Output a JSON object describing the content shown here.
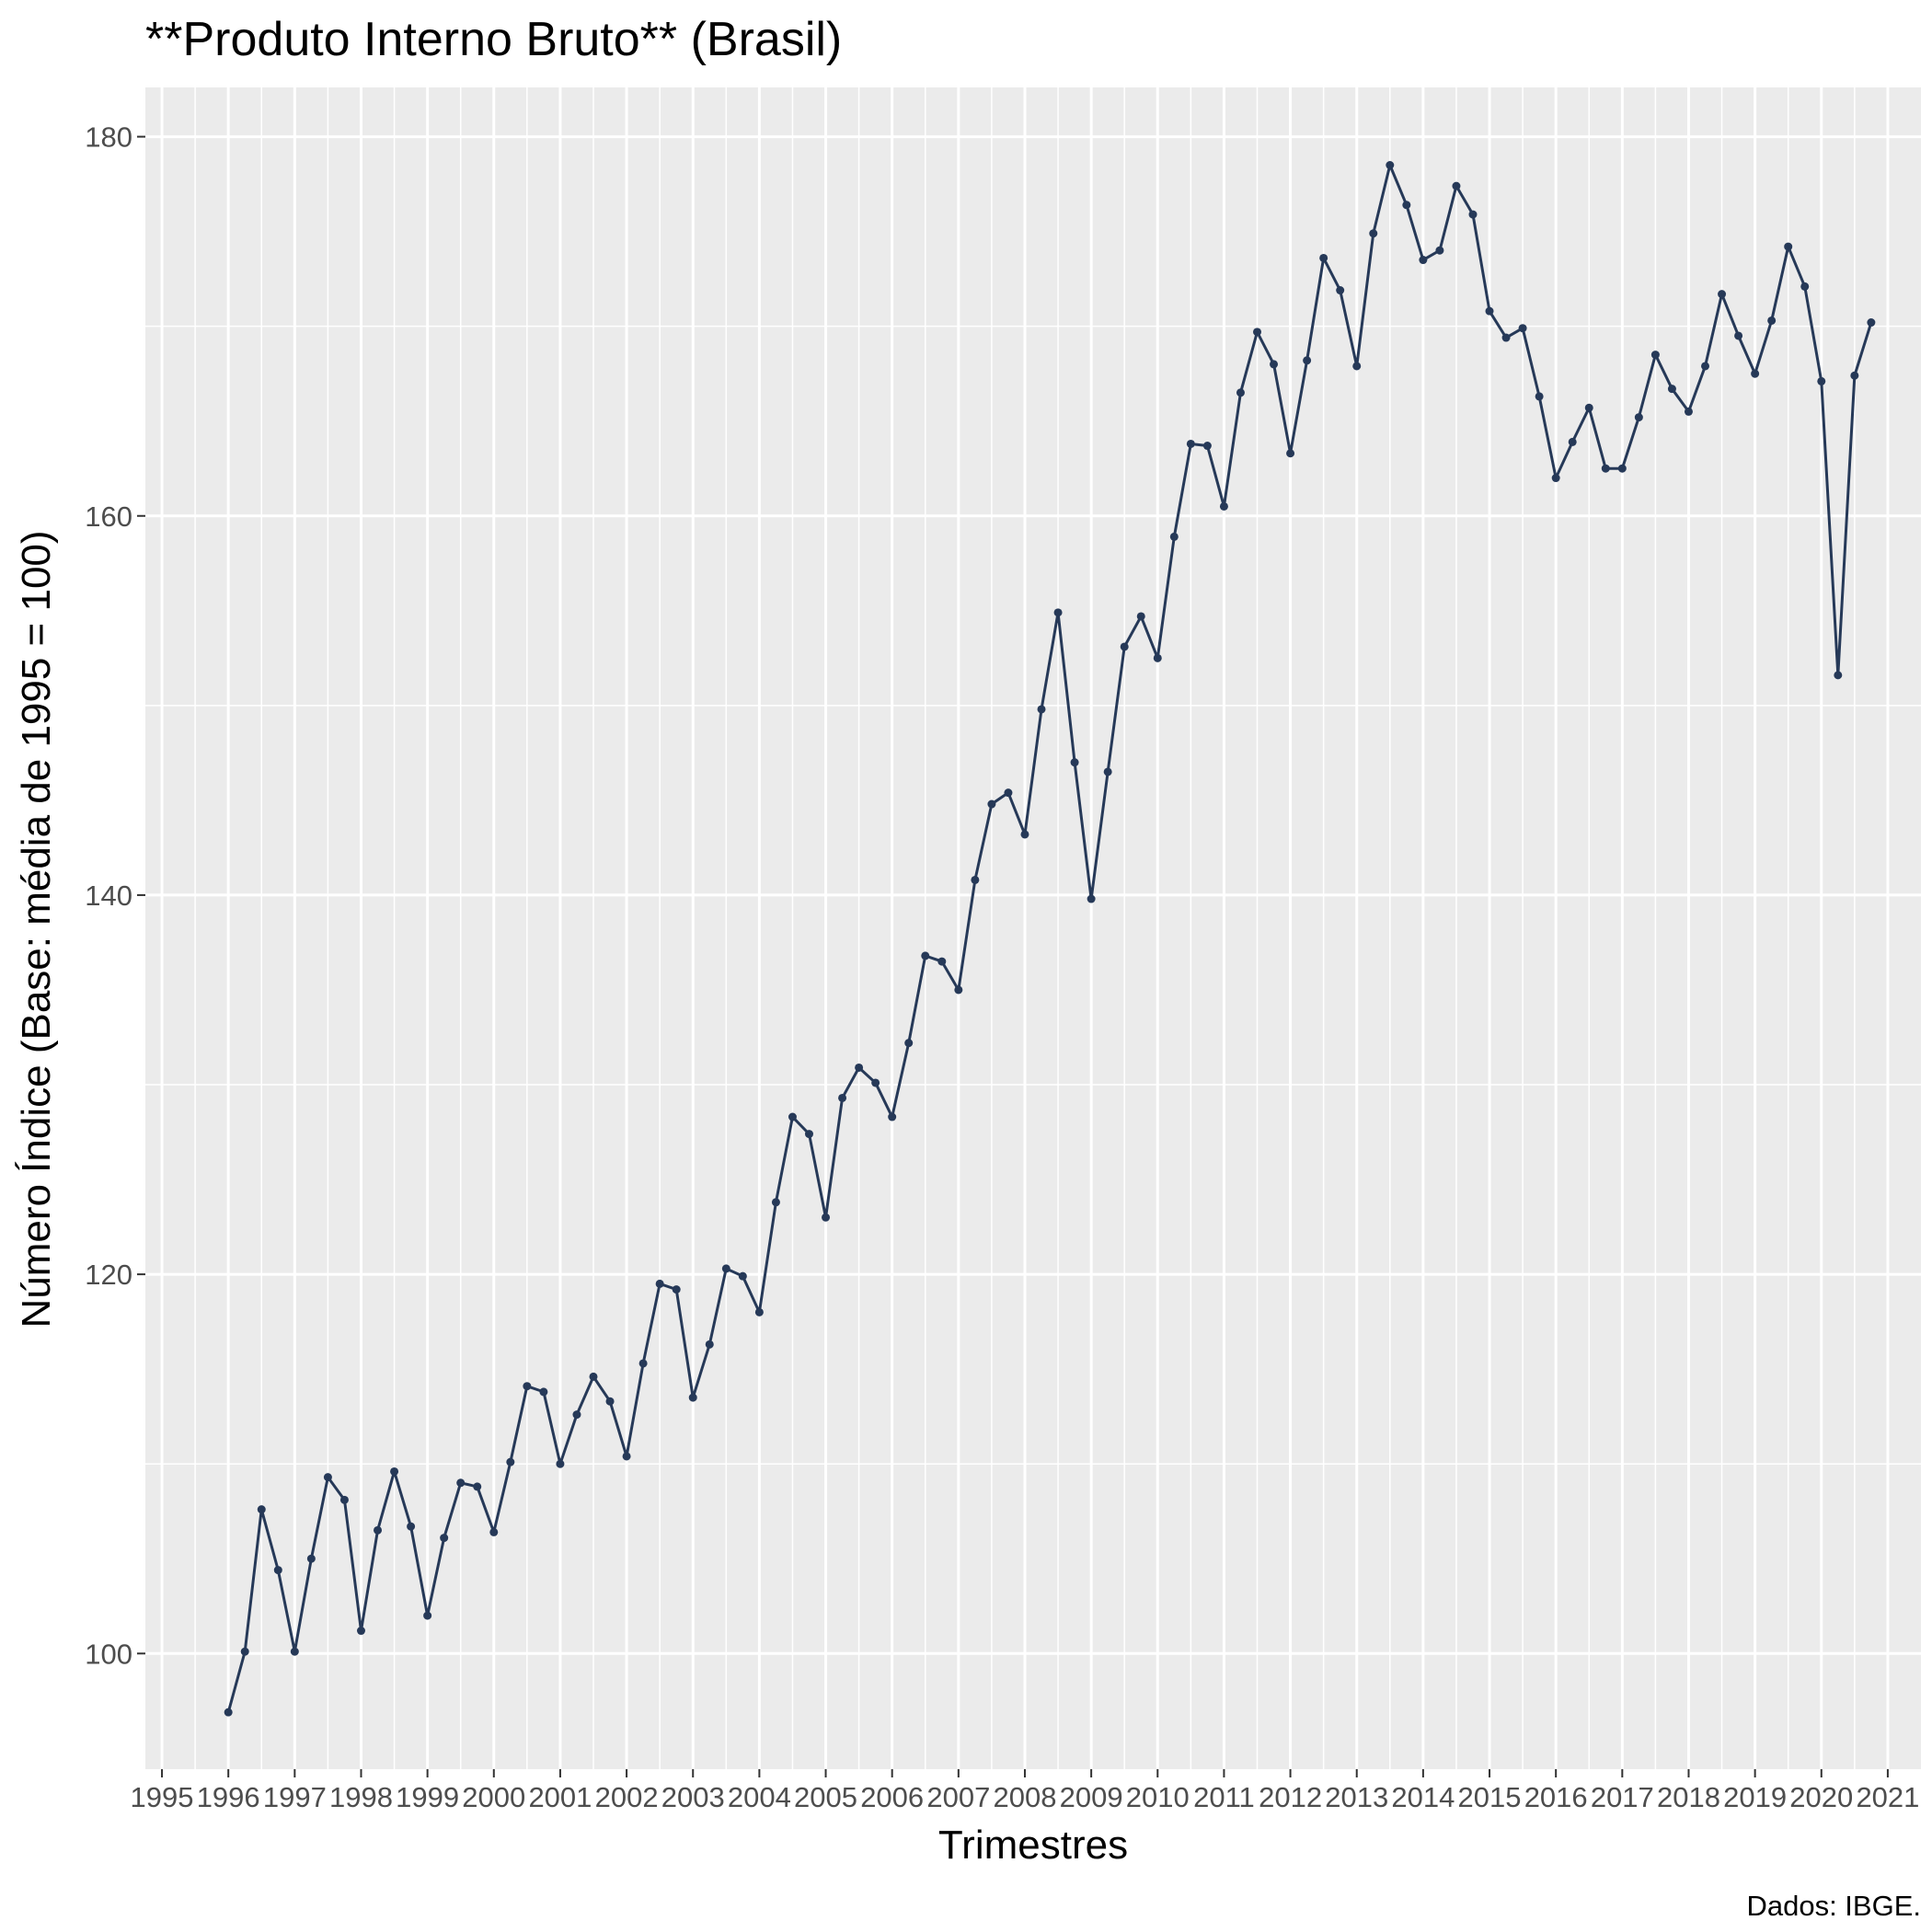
{
  "chart_data": {
    "type": "line",
    "title": "**Produto Interno Bruto** (Brasil)",
    "xlabel": "Trimestres",
    "ylabel": "Número Índice (Base: média de 1995 = 100)",
    "caption": "Dados: IBGE.",
    "x_ticks": [
      "1995",
      "1996",
      "1997",
      "1998",
      "1999",
      "2000",
      "2001",
      "2002",
      "2003",
      "2004",
      "2005",
      "2006",
      "2007",
      "2008",
      "2009",
      "2010",
      "2011",
      "2012",
      "2013",
      "2014",
      "2015",
      "2016",
      "2017",
      "2018",
      "2019",
      "2020",
      "2021"
    ],
    "y_ticks": [
      "100",
      "120",
      "140",
      "160",
      "180"
    ],
    "xlim": [
      1994.75,
      2021.5
    ],
    "ylim": [
      93.9,
      182.6
    ],
    "grid": true,
    "line_color": "#263958",
    "panel_background": "#ebebeb",
    "series": [
      {
        "x": [
          1996.0,
          1996.25,
          1996.5,
          1996.75,
          1997.0,
          1997.25,
          1997.5,
          1997.75,
          1998.0,
          1998.25,
          1998.5,
          1998.75,
          1999.0,
          1999.25,
          1999.5,
          1999.75,
          2000.0,
          2000.25,
          2000.5,
          2000.75,
          2001.0,
          2001.25,
          2001.5,
          2001.75,
          2002.0,
          2002.25,
          2002.5,
          2002.75,
          2003.0,
          2003.25,
          2003.5,
          2003.75,
          2004.0,
          2004.25,
          2004.5,
          2004.75,
          2005.0,
          2005.25,
          2005.5,
          2005.75,
          2006.0,
          2006.25,
          2006.5,
          2006.75,
          2007.0,
          2007.25,
          2007.5,
          2007.75,
          2008.0,
          2008.25,
          2008.5,
          2008.75,
          2009.0,
          2009.25,
          2009.5,
          2009.75,
          2010.0,
          2010.25,
          2010.5,
          2010.75,
          2011.0,
          2011.25,
          2011.5,
          2011.75,
          2012.0,
          2012.25,
          2012.5,
          2012.75,
          2013.0,
          2013.25,
          2013.5,
          2013.75,
          2014.0,
          2014.25,
          2014.5,
          2014.75,
          2015.0,
          2015.25,
          2015.5,
          2015.75,
          2016.0,
          2016.25,
          2016.5,
          2016.75,
          2017.0,
          2017.25,
          2017.5,
          2017.75,
          2018.0,
          2018.25,
          2018.5,
          2018.75,
          2019.0,
          2019.25,
          2019.5,
          2019.75,
          2020.0,
          2020.25,
          2020.5,
          2020.75
        ],
        "values": [
          96.9,
          100.1,
          107.6,
          104.4,
          100.1,
          105.0,
          109.3,
          108.1,
          101.2,
          106.5,
          109.6,
          106.7,
          102.0,
          106.1,
          109.0,
          108.8,
          106.4,
          110.1,
          114.1,
          113.8,
          110.0,
          112.6,
          114.6,
          113.3,
          110.4,
          115.3,
          119.5,
          119.2,
          113.5,
          116.3,
          120.3,
          119.9,
          118.0,
          123.8,
          128.3,
          127.4,
          123.0,
          129.3,
          130.9,
          130.1,
          128.3,
          132.2,
          136.8,
          136.5,
          135.0,
          140.8,
          144.8,
          145.4,
          143.2,
          149.8,
          154.9,
          147.0,
          139.8,
          146.5,
          153.1,
          154.7,
          152.5,
          158.9,
          163.8,
          163.7,
          160.5,
          166.5,
          169.7,
          168.0,
          163.3,
          168.2,
          173.6,
          171.9,
          167.9,
          174.9,
          178.5,
          176.4,
          173.5,
          174.0,
          177.4,
          175.9,
          170.8,
          169.4,
          169.9,
          166.3,
          162.0,
          163.9,
          165.7,
          162.5,
          162.5,
          165.2,
          168.5,
          166.7,
          165.5,
          167.9,
          171.7,
          169.5,
          167.5,
          170.3,
          174.2,
          172.1,
          167.1,
          151.6,
          167.4,
          170.2
        ]
      }
    ]
  }
}
